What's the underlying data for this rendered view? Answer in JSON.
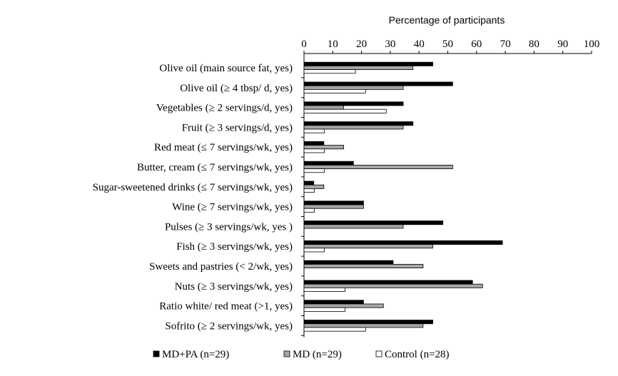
{
  "chart_data": {
    "type": "bar",
    "orientation": "horizontal",
    "title": "",
    "xlabel": "Percentage of participants",
    "ylabel": "",
    "xlim": [
      0,
      100
    ],
    "xticks": [
      "0",
      "10",
      "20",
      "30",
      "40",
      "50",
      "60",
      "70",
      "80",
      "90",
      "100"
    ],
    "x_axis_position": "top",
    "grid": false,
    "legend_position": "bottom",
    "categories": [
      "Olive oil (main source fat, yes)",
      "Olive oil (≥ 4 tbsp/ d, yes)",
      "Vegetables (≥ 2 servings/d, yes)",
      "Fruit (≥ 3 servings/d, yes)",
      "Red meat (≤ 7 servings/wk, yes)",
      "Butter, cream (≤ 7 servings/wk, yes)",
      "Sugar-sweetened drinks (≤ 7 servings/wk, yes)",
      "Wine (≥ 7 servings/wk, yes)",
      "Pulses  (≥ 3 servings/wk, yes )",
      "Fish  (≥ 3 servings/wk, yes)",
      "Sweets and pastries (< 2/wk, yes)",
      "Nuts (≥ 3 servings/wk, yes)",
      "Ratio white/ red meat (>1, yes)",
      "Sofrito (≥ 2 servings/wk, yes)"
    ],
    "series": [
      {
        "name": "MD+PA (n=29)",
        "color": "#000000",
        "values": [
          44.8,
          51.7,
          34.5,
          37.9,
          6.9,
          17.2,
          3.4,
          20.7,
          48.3,
          69.0,
          31.0,
          58.6,
          20.7,
          44.8
        ]
      },
      {
        "name": "MD (n=29)",
        "color": "#a6a6a6",
        "values": [
          37.9,
          34.5,
          13.8,
          34.5,
          13.8,
          51.7,
          6.9,
          20.7,
          34.5,
          44.8,
          41.4,
          62.1,
          27.6,
          41.4
        ]
      },
      {
        "name": "Control (n=28)",
        "color": "#ffffff",
        "values": [
          17.9,
          21.4,
          28.6,
          7.1,
          7.1,
          7.1,
          3.6,
          3.6,
          0.0,
          7.1,
          0.0,
          14.3,
          14.3,
          21.4
        ]
      }
    ]
  }
}
